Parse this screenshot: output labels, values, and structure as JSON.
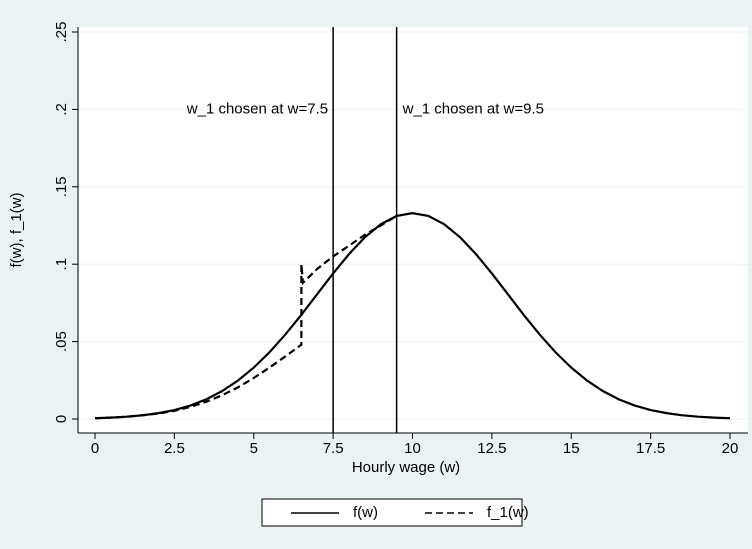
{
  "chart_data": {
    "type": "line",
    "xlabel": "Hourly wage (w)",
    "ylabel": "f(w), f_1(w)",
    "xlim": [
      0,
      20
    ],
    "ylim": [
      0,
      0.25
    ],
    "xticks": [
      0,
      2.5,
      5,
      7.5,
      10,
      12.5,
      15,
      17.5,
      20
    ],
    "yticks": [
      {
        "value": 0,
        "label": "0"
      },
      {
        "value": 0.05,
        "label": ".05"
      },
      {
        "value": 0.1,
        "label": ".1"
      },
      {
        "value": 0.15,
        "label": ".15"
      },
      {
        "value": 0.2,
        "label": ".2"
      },
      {
        "value": 0.25,
        "label": ".25"
      }
    ],
    "grid": true,
    "vlines": [
      {
        "x": 7.5,
        "label": "w_1 chosen at w=7.5",
        "label_y": 0.2,
        "label_side": "left"
      },
      {
        "x": 9.5,
        "label": "w_1 chosen at w=9.5",
        "label_y": 0.2,
        "label_side": "right"
      }
    ],
    "legend": "bottom",
    "series": [
      {
        "name": "f(w)",
        "color": "#000000",
        "dash": "solid",
        "x": [
          0,
          0.5,
          1,
          1.5,
          2,
          2.5,
          3,
          3.5,
          4,
          4.5,
          5,
          5.5,
          6,
          6.5,
          7,
          7.5,
          8,
          8.5,
          9,
          9.5,
          10,
          10.5,
          11,
          11.5,
          12,
          12.5,
          13,
          13.5,
          14,
          14.5,
          15,
          15.5,
          16,
          16.5,
          17,
          17.5,
          18,
          18.5,
          19,
          19.5,
          20
        ],
        "values": [
          0.0005,
          0.0009,
          0.0015,
          0.0024,
          0.0038,
          0.0058,
          0.0087,
          0.0127,
          0.018,
          0.0248,
          0.0332,
          0.0432,
          0.0547,
          0.0673,
          0.0807,
          0.094,
          0.1065,
          0.1174,
          0.1258,
          0.1312,
          0.133,
          0.1312,
          0.1258,
          0.1174,
          0.1065,
          0.094,
          0.0807,
          0.0673,
          0.0547,
          0.0432,
          0.0332,
          0.0248,
          0.018,
          0.0127,
          0.0087,
          0.0058,
          0.0038,
          0.0024,
          0.0015,
          0.0009,
          0.0005
        ]
      },
      {
        "name": "f_1(w)",
        "color": "#000000",
        "dash": "dashed",
        "x": [
          0,
          1,
          2,
          2.5,
          3,
          3.5,
          4,
          4.5,
          5,
          5.5,
          6,
          6.5,
          6.5,
          6.55,
          7,
          7.5,
          8,
          8.5,
          9,
          9.5
        ],
        "values": [
          0.0005,
          0.0014,
          0.0035,
          0.0053,
          0.0078,
          0.0111,
          0.0153,
          0.0204,
          0.0265,
          0.0333,
          0.0405,
          0.048,
          0.1,
          0.088,
          0.097,
          0.105,
          0.112,
          0.119,
          0.125,
          0.1312
        ]
      }
    ]
  }
}
